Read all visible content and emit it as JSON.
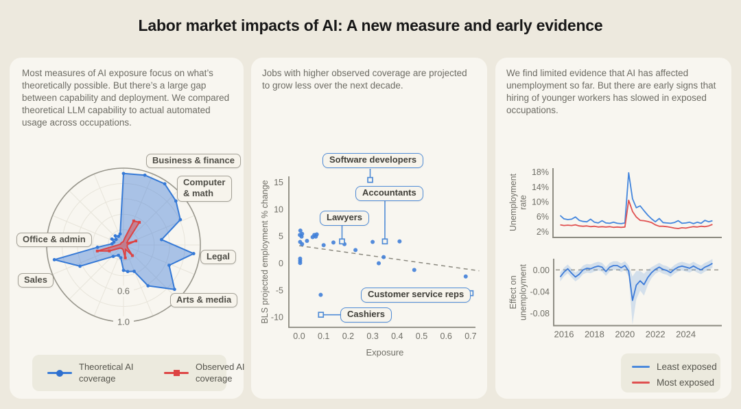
{
  "page": {
    "title": "Labor market impacts of AI: A new measure and early evidence"
  },
  "colors": {
    "background": "#ede9de",
    "panel": "#f8f6f0",
    "blue": "#3579d6",
    "red": "#dd4343",
    "axis_gray": "#8b897f",
    "text_gray": "#6d6c64"
  },
  "panels": [
    {
      "description": "Most measures of AI exposure focus on what’s theoretically possible. But there’s a large gap between capability and deployment. We compared theoretical LLM capability to actual automated usage across occupations."
    },
    {
      "description": "Jobs with higher observed coverage are projected to grow less over the next decade."
    },
    {
      "description": "We find limited evidence that AI has affected unemployment so far. But there are early signs that hiring of younger workers has slowed in exposed occupations."
    }
  ],
  "chart_data": [
    {
      "type": "radar",
      "spokes": 16,
      "grid_rings": [
        0.2,
        0.4,
        0.6,
        0.8
      ],
      "radial_ticks": [
        [
          0.6,
          "0.6"
        ],
        [
          1.0,
          "1.0"
        ]
      ],
      "max": 1.0,
      "axis_labels": [
        "Business & finance",
        "Computer & math",
        "Legal",
        "Arts & media",
        "Sales",
        "Office & admin"
      ],
      "series": [
        {
          "name": "Theoretical AI coverage",
          "color": "#3579d6",
          "fill": "rgba(59,122,216,0.42)",
          "marker": "circle",
          "points": [
            [
              0,
              0.93
            ],
            [
              17,
              0.95
            ],
            [
              34,
              0.96
            ],
            [
              50,
              0.89
            ],
            [
              66,
              0.81
            ],
            [
              82,
              0.5
            ],
            [
              97,
              0.92
            ],
            [
              114,
              0.65
            ],
            [
              131,
              0.88
            ],
            [
              149,
              0.62
            ],
            [
              158,
              0.37
            ],
            [
              171,
              0.35
            ],
            [
              180,
              0.33
            ],
            [
              192,
              0.17
            ],
            [
              206,
              0.15
            ],
            [
              222,
              0.2
            ],
            [
              244,
              0.63
            ],
            [
              258,
              0.92
            ],
            [
              265,
              0.34
            ],
            [
              276,
              0.15
            ],
            [
              287,
              0.13
            ],
            [
              297,
              0.17
            ],
            [
              307,
              0.12
            ],
            [
              318,
              0.16
            ],
            [
              330,
              0.13
            ],
            [
              343,
              0.15
            ]
          ]
        },
        {
          "name": "Observed AI coverage",
          "color": "#dd4343",
          "fill": "rgba(221,68,68,0.5)",
          "marker": "square",
          "points": [
            [
              0,
              0.05
            ],
            [
              12,
              0.1
            ],
            [
              23,
              0.34
            ],
            [
              35,
              0.36
            ],
            [
              45,
              0.08
            ],
            [
              60,
              0.05
            ],
            [
              72,
              0.17
            ],
            [
              85,
              0.05
            ],
            [
              105,
              0.05
            ],
            [
              122,
              0.06
            ],
            [
              140,
              0.18
            ],
            [
              155,
              0.06
            ],
            [
              172,
              0.17
            ],
            [
              186,
              0.06
            ],
            [
              205,
              0.05
            ],
            [
              228,
              0.06
            ],
            [
              247,
              0.2
            ],
            [
              257,
              0.35
            ],
            [
              268,
              0.08
            ],
            [
              285,
              0.04
            ],
            [
              305,
              0.04
            ],
            [
              330,
              0.04
            ],
            [
              348,
              0.04
            ]
          ]
        }
      ]
    },
    {
      "type": "scatter",
      "xlabel": "Exposure",
      "ylabel": "BLS projected employment % change",
      "xticks": [
        0.0,
        0.1,
        0.2,
        0.3,
        0.4,
        0.5,
        0.6,
        0.7
      ],
      "yticks": [
        15,
        10,
        5,
        0,
        -5,
        -10
      ],
      "xlim": [
        -0.02,
        0.74
      ],
      "ylim": [
        -12.5,
        17
      ],
      "point_color": "#4080d8",
      "accent": "#4f8bd6",
      "points": [
        [
          0.005,
          6.1
        ],
        [
          0.003,
          5.3
        ],
        [
          0.012,
          5.5
        ],
        [
          0.01,
          5.0
        ],
        [
          0.004,
          4.0
        ],
        [
          0.012,
          3.6
        ],
        [
          0.004,
          0.9
        ],
        [
          0.004,
          0.5
        ],
        [
          0.004,
          0.1
        ],
        [
          0.032,
          4.2
        ],
        [
          0.055,
          4.9
        ],
        [
          0.062,
          5.3
        ],
        [
          0.068,
          5.0
        ],
        [
          0.072,
          5.4
        ],
        [
          0.1,
          3.4
        ],
        [
          0.14,
          3.9
        ],
        [
          0.185,
          3.6
        ],
        [
          0.23,
          2.5
        ],
        [
          0.3,
          4.0
        ],
        [
          0.325,
          0.05
        ],
        [
          0.345,
          1.2
        ],
        [
          0.41,
          4.1
        ],
        [
          0.47,
          -1.2
        ],
        [
          0.68,
          -2.4
        ],
        [
          0.088,
          -5.8
        ]
      ],
      "labeled_points": [
        {
          "label": "Software developers",
          "x": 0.29,
          "y": 15.5
        },
        {
          "label": "Accountants",
          "x": 0.35,
          "y": 4.1
        },
        {
          "label": "Lawyers",
          "x": 0.175,
          "y": 4.1
        },
        {
          "label": "Customer service reps",
          "x": 0.7,
          "y": -5.5
        },
        {
          "label": "Cashiers",
          "x": 0.089,
          "y": -9.5
        }
      ],
      "trend": {
        "x1": 0.0,
        "y1": 3.3,
        "x2": 0.735,
        "y2": -1.35,
        "style": "dashed"
      }
    },
    {
      "type": "line",
      "ylabel": "Unemployment rate",
      "ylabel_lines": [
        "Unemployment",
        "rate"
      ],
      "yticks": [
        [
          18,
          "18%"
        ],
        [
          14,
          "14%"
        ],
        [
          10,
          "10%"
        ],
        [
          6,
          "6%"
        ],
        [
          2,
          "2%"
        ]
      ],
      "x_start": 2015.75,
      "x_step": 0.25,
      "series": [
        {
          "name": "Least exposed",
          "color": "#4285dd",
          "values": [
            6.3,
            5.4,
            5.2,
            5.3,
            5.9,
            5.0,
            4.7,
            4.6,
            5.3,
            4.5,
            4.3,
            4.9,
            4.3,
            4.2,
            4.5,
            4.2,
            4.1,
            4.3,
            17.8,
            10.8,
            8.4,
            8.9,
            7.6,
            6.4,
            5.4,
            4.6,
            5.5,
            4.4,
            4.3,
            4.2,
            4.4,
            4.9,
            4.2,
            4.3,
            4.5,
            4.1,
            4.5,
            4.2,
            5.0,
            4.6,
            4.9
          ]
        },
        {
          "name": "Most exposed",
          "color": "#e05050",
          "values": [
            3.8,
            3.6,
            3.7,
            3.6,
            3.8,
            3.5,
            3.4,
            3.5,
            3.3,
            3.4,
            3.2,
            3.3,
            3.2,
            3.3,
            3.1,
            3.2,
            3.1,
            3.2,
            10.4,
            7.4,
            5.9,
            5.0,
            4.9,
            4.7,
            4.4,
            3.8,
            3.4,
            3.4,
            3.3,
            3.1,
            2.9,
            2.8,
            3.0,
            2.9,
            3.1,
            3.3,
            3.2,
            3.4,
            3.3,
            3.5,
            3.9
          ]
        }
      ]
    },
    {
      "type": "line_band",
      "ylabel": "Effect on unemployment",
      "ylabel_lines": [
        "Effect on",
        "unemployment"
      ],
      "yticks": [
        [
          0,
          "0.00"
        ],
        [
          -0.04,
          "-0.04"
        ],
        [
          -0.08,
          "-0.08"
        ]
      ],
      "xticks": [
        [
          2016,
          "2016"
        ],
        [
          2018,
          "2018"
        ],
        [
          2020,
          "2020"
        ],
        [
          2022,
          "2022"
        ],
        [
          2024,
          "2024"
        ]
      ],
      "x_start": 2015.75,
      "x_step": 0.25,
      "zero_line": true,
      "series": [
        {
          "name": "Effect on unemployment",
          "color": "#3b7ad8",
          "band_fill": "rgba(100,155,220,0.25)",
          "values": [
            -0.013,
            -0.004,
            0.002,
            -0.006,
            -0.013,
            -0.008,
            0.0,
            0.003,
            0.002,
            0.005,
            0.007,
            0.005,
            -0.003,
            0.005,
            0.008,
            0.008,
            0.004,
            0.008,
            -0.002,
            -0.056,
            -0.028,
            -0.02,
            -0.027,
            -0.014,
            -0.005,
            0.001,
            0.005,
            0.001,
            -0.001,
            -0.005,
            0.001,
            0.005,
            0.007,
            0.005,
            0.003,
            0.007,
            0.003,
            0.0,
            0.005,
            0.008,
            0.012
          ],
          "band": [
            0.008,
            0.008,
            0.008,
            0.008,
            0.008,
            0.008,
            0.008,
            0.008,
            0.008,
            0.008,
            0.008,
            0.008,
            0.008,
            0.008,
            0.008,
            0.008,
            0.008,
            0.008,
            0.01,
            0.044,
            0.026,
            0.018,
            0.02,
            0.014,
            0.01,
            0.008,
            0.008,
            0.008,
            0.008,
            0.008,
            0.008,
            0.008,
            0.008,
            0.008,
            0.008,
            0.008,
            0.008,
            0.008,
            0.008,
            0.008,
            0.008
          ]
        }
      ]
    }
  ]
}
